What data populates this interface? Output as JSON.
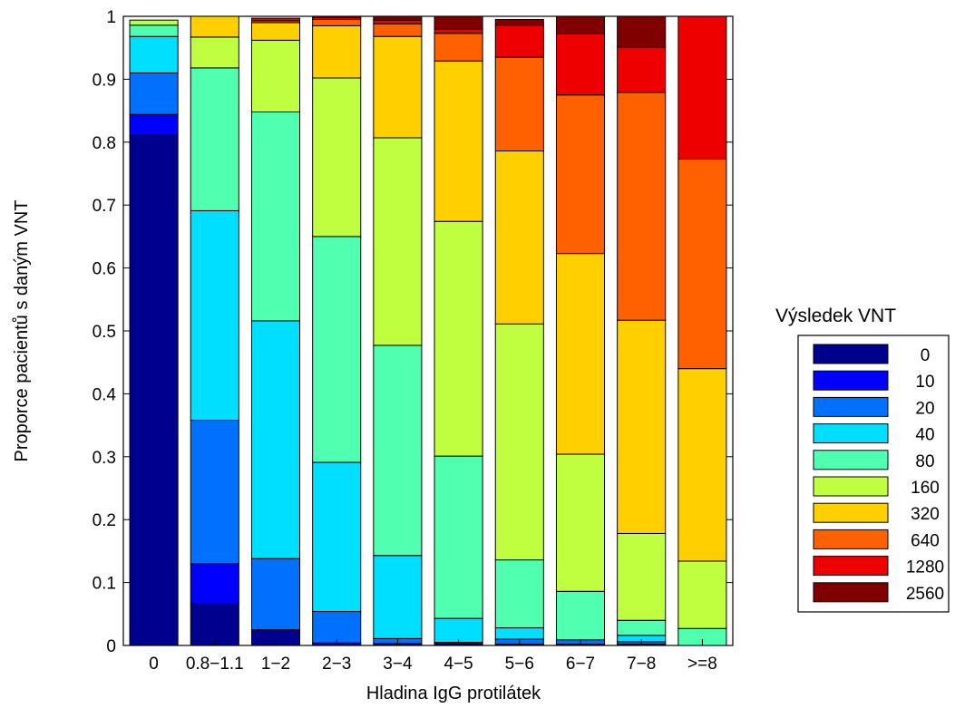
{
  "chart_data": {
    "type": "bar",
    "stacked": true,
    "normalized": true,
    "xlabel": "Hladina IgG protilátek",
    "ylabel": "Proporce pacientů s daným VNT",
    "ylim": [
      0,
      1
    ],
    "yticks": [
      0,
      0.1,
      0.2,
      0.3,
      0.4,
      0.5,
      0.6,
      0.7,
      0.8,
      0.9,
      1
    ],
    "ytick_labels": [
      "0",
      "0.1",
      "0.2",
      "0.3",
      "0.4",
      "0.5",
      "0.6",
      "0.7",
      "0.8",
      "0.9",
      "1"
    ],
    "grid": false,
    "categories": [
      "0",
      "0.8−1.1",
      "1−2",
      "2−3",
      "3−4",
      "4−5",
      "5−6",
      "6−7",
      "7−8",
      ">=8"
    ],
    "legend": {
      "title": "Výsledek VNT",
      "placement": "right"
    },
    "series": [
      {
        "name": "0",
        "color": "#00008f",
        "values": [
          0.811,
          0.067,
          0.025,
          0.004,
          0.003,
          0.003,
          0.002,
          0.002,
          0.002,
          0.0
        ]
      },
      {
        "name": "10",
        "color": "#0000ff",
        "values": [
          0.033,
          0.063,
          0.0,
          0.0,
          0.0,
          0.0,
          0.0,
          0.0,
          0.0,
          0.0
        ]
      },
      {
        "name": "20",
        "color": "#0070ff",
        "values": [
          0.066,
          0.228,
          0.113,
          0.05,
          0.008,
          0.002,
          0.008,
          0.007,
          0.004,
          0.0
        ]
      },
      {
        "name": "40",
        "color": "#00dfff",
        "values": [
          0.058,
          0.333,
          0.378,
          0.237,
          0.132,
          0.038,
          0.018,
          0.0,
          0.01,
          0.0
        ]
      },
      {
        "name": "80",
        "color": "#50ffaf",
        "values": [
          0.018,
          0.227,
          0.332,
          0.359,
          0.334,
          0.258,
          0.108,
          0.077,
          0.024,
          0.027
        ]
      },
      {
        "name": "160",
        "color": "#bfff40",
        "values": [
          0.008,
          0.049,
          0.114,
          0.252,
          0.33,
          0.373,
          0.375,
          0.218,
          0.138,
          0.107
        ]
      },
      {
        "name": "320",
        "color": "#ffcf00",
        "values": [
          0.0,
          0.033,
          0.028,
          0.083,
          0.161,
          0.255,
          0.275,
          0.319,
          0.339,
          0.306
        ]
      },
      {
        "name": "640",
        "color": "#ff6000",
        "values": [
          0.0,
          0.0,
          0.003,
          0.01,
          0.02,
          0.044,
          0.149,
          0.252,
          0.362,
          0.333
        ]
      },
      {
        "name": "1280",
        "color": "#ef0000",
        "values": [
          0.0,
          0.0,
          0.004,
          0.003,
          0.006,
          0.007,
          0.051,
          0.097,
          0.072,
          0.227
        ]
      },
      {
        "name": "2560",
        "color": "#800000",
        "values": [
          0.0,
          0.0,
          0.0,
          0.002,
          0.006,
          0.02,
          0.009,
          0.028,
          0.049,
          0.0
        ]
      }
    ]
  }
}
